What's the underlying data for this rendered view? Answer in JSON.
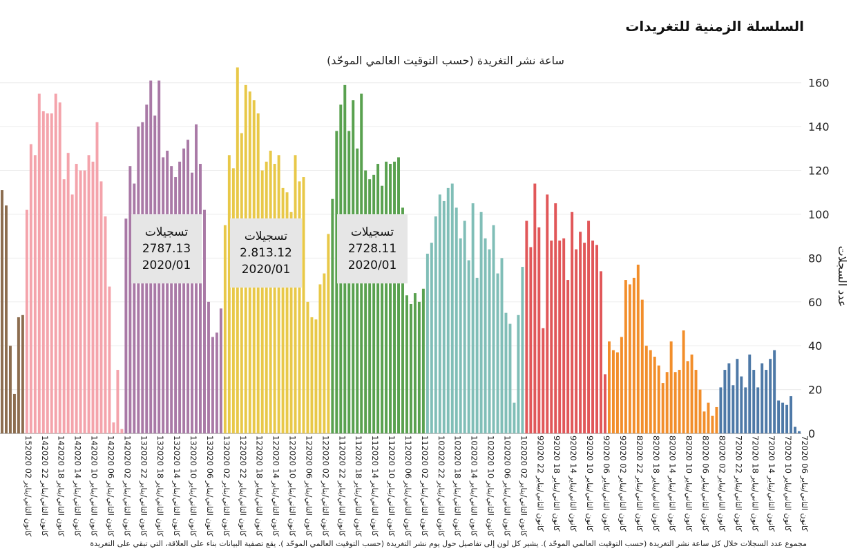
{
  "header": {
    "title": "السلسلة الزمنية للتغريدات",
    "footnote": "مجموع عدد السجلات خلال كل ساعة نشر التغريدة (حسب التوقيت العالمي الموحّد ). يشير كل لون  إلى تفاصيل حول يوم نشر التغريدة (حسب التوقيت العالمي الموحّد ). يقع تصفية البيانات بناء على العلاقة، التي تبقي على التغريدة"
  },
  "callouts": [
    {
      "label": "تسجيلات",
      "value": "2787.13",
      "date": "2020/01"
    },
    {
      "label": "تسجيلات",
      "value": "2.813.12",
      "date": "2020/01"
    },
    {
      "label": "تسجيلات",
      "value": "2728.11",
      "date": "2020/01"
    }
  ],
  "chart_data": {
    "type": "bar",
    "title": "ساعة نشر التغريدة (حسب التوقيت العالمي الموحّد)",
    "ylabel": "عدد السجلات",
    "ylim": [
      0,
      170
    ],
    "yticks": [
      0,
      20,
      40,
      60,
      80,
      100,
      120,
      140,
      160
    ],
    "y_axis_side": "right",
    "grid": true,
    "xtick_labels": [
      "15كانون الثاني/يناير 02 2020",
      "14كانون الثاني/يناير 22 2020",
      "14كانون الثاني/يناير 18 2020",
      "14كانون الثاني/يناير 14 2020",
      "14كانون الثاني/يناير 10 2020",
      "14كانون الثاني/يناير 06 2020",
      "14كانون الثاني/يناير 02 2020",
      "13كانون الثاني/يناير 22 2020",
      "13كانون الثاني/يناير 18 2020",
      "13كانون الثاني/يناير 14 2020",
      "13كانون الثاني/يناير 10 2020",
      "13كانون الثاني/يناير 06 2020",
      "13كانون الثاني/يناير 02 2020",
      "12كانون الثاني/يناير 22 2020",
      "12كانون الثاني/يناير 18 2020",
      "12كانون الثاني/يناير 14 2020",
      "12كانون الثاني/يناير 10 2020",
      "12كانون الثاني/يناير 06 2020",
      "12كانون الثاني/يناير 02 2020",
      "11كانون الثاني/يناير 22 2020",
      "11كانون الثاني/يناير 18 2020",
      "11كانون الثاني/يناير 14 2020",
      "11كانون الثاني/يناير 10 2020",
      "11كانون الثاني/يناير 06 2020",
      "11كانون الثاني/يناير 02 2020",
      "10كانون الثاني/يناير 22 2020",
      "10كانون الثاني/يناير 18 2020",
      "10كانون الثاني/يناير 14 2020",
      "10كانون الثاني/يناير 10 2020",
      "10كانون الثاني/يناير 06 2020",
      "10كانون الثاني/يناير 02 2020",
      "9كانون الثاني/يناير 22 2020",
      "9كانون الثاني/يناير 18 2020",
      "9كانون الثاني/يناير 14 2020",
      "9كانون الثاني/يناير 10 2020",
      "9كانون الثاني/يناير 06 2020",
      "9كانون الثاني/يناير 02 2020",
      "8كانون الثاني/يناير 22 2020",
      "8كانون الثاني/يناير 18 2020",
      "8كانون الثاني/يناير 14 2020",
      "8كانون الثاني/يناير 10 2020",
      "8كانون الثاني/يناير 06 2020",
      "8كانون الثاني/يناير 02 2020",
      "7كانون الثاني/يناير 22 2020",
      "7كانون الثاني/يناير 18 2020",
      "7كانون الثاني/يناير 14 2020",
      "7كانون الثاني/يناير 10 2020",
      "7كانون الثاني/يناير 06 2020"
    ],
    "series": [
      {
        "day": "15",
        "color": "#8c6d4f",
        "values": [
          111,
          104,
          40,
          18,
          53,
          54
        ]
      },
      {
        "day": "14",
        "color": "#f4a3ab",
        "values": [
          102,
          132,
          127,
          155,
          147,
          146,
          146,
          155,
          151,
          116,
          128,
          109,
          123,
          120,
          120,
          127,
          124,
          142,
          115,
          99,
          67,
          5,
          29,
          2
        ]
      },
      {
        "day": "13",
        "color": "#a979a6",
        "values": [
          98,
          122,
          114,
          140,
          142,
          150,
          161,
          145,
          161,
          126,
          129,
          122,
          117,
          124,
          130,
          134,
          119,
          141,
          123,
          102,
          60,
          44,
          46,
          57
        ]
      },
      {
        "day": "12",
        "color": "#e8c848",
        "values": [
          95,
          127,
          121,
          167,
          137,
          159,
          156,
          152,
          146,
          120,
          124,
          129,
          123,
          127,
          112,
          110,
          101,
          127,
          115,
          117,
          60,
          53,
          52,
          68,
          73,
          91
        ]
      },
      {
        "day": "11",
        "color": "#59a14f",
        "values": [
          107,
          138,
          150,
          159,
          138,
          152,
          130,
          155,
          120,
          116,
          118,
          123,
          113,
          124,
          123,
          124,
          126,
          103,
          63,
          59,
          64,
          60,
          66
        ]
      },
      {
        "day": "10",
        "color": "#80beb7",
        "values": [
          82,
          87,
          99,
          109,
          106,
          112,
          114,
          103,
          89,
          97,
          79,
          105,
          71,
          101,
          89,
          84,
          95,
          73,
          80,
          55,
          50,
          14,
          54,
          76
        ]
      },
      {
        "day": "9",
        "color": "#e15759",
        "values": [
          97,
          85,
          114,
          94,
          48,
          109,
          88,
          105,
          88,
          89,
          70,
          101,
          84,
          92,
          87,
          97,
          88,
          86,
          74,
          27
        ]
      },
      {
        "day": "8",
        "color": "#f28e2b",
        "values": [
          42,
          38,
          37,
          44,
          70,
          68,
          71,
          77,
          61,
          40,
          38,
          35,
          31,
          23,
          28,
          42,
          28,
          29,
          47,
          33,
          36,
          29,
          20,
          10,
          14,
          8,
          12
        ]
      },
      {
        "day": "7",
        "color": "#4e79a7",
        "values": [
          21,
          29,
          32,
          22,
          34,
          26,
          21,
          36,
          29,
          21,
          32,
          29,
          34,
          38,
          15,
          14,
          13,
          17,
          3,
          1
        ]
      }
    ]
  }
}
